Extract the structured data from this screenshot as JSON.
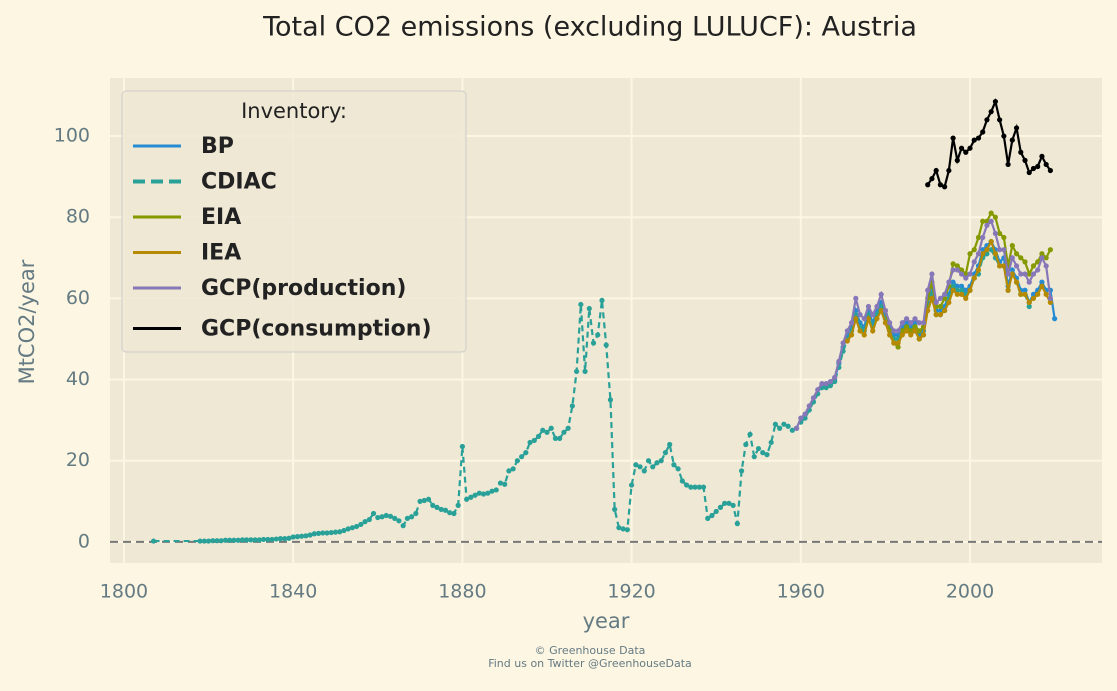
{
  "chart_data": {
    "type": "line",
    "title": "Total CO2 emissions (excluding LULUCF): Austria",
    "x_label": "year",
    "y_label": "MtCO2/year",
    "legend_title": "Inventory:",
    "legend_position": "upper left",
    "footer": [
      "© Greenhouse Data",
      "Find us on Twitter @GreenhouseData"
    ],
    "xlim": [
      1796.7,
      2031.2
    ],
    "ylim": [
      -5.2,
      114.3
    ],
    "xticks": [
      1800,
      1840,
      1880,
      1920,
      1960,
      2000
    ],
    "yticks": [
      0,
      20,
      40,
      60,
      80,
      100
    ],
    "grid": true,
    "hline": 0,
    "series": [
      {
        "name": "BP",
        "color": "#268bd2",
        "linestyle": "solid",
        "x": [
          1965,
          1966,
          1967,
          1968,
          1969,
          1970,
          1971,
          1972,
          1973,
          1974,
          1975,
          1976,
          1977,
          1978,
          1979,
          1980,
          1981,
          1982,
          1983,
          1984,
          1985,
          1986,
          1987,
          1988,
          1989,
          1990,
          1991,
          1992,
          1993,
          1994,
          1995,
          1996,
          1997,
          1998,
          1999,
          2000,
          2001,
          2002,
          2003,
          2004,
          2005,
          2006,
          2007,
          2008,
          2009,
          2010,
          2011,
          2012,
          2013,
          2014,
          2015,
          2016,
          2017,
          2018,
          2019,
          2020
        ],
        "values": [
          38.5,
          38.5,
          39,
          40,
          44,
          48,
          51,
          53,
          57,
          54,
          53,
          57,
          54,
          57,
          59,
          56,
          53,
          51,
          51,
          53,
          54,
          53,
          54,
          51,
          52,
          59,
          62,
          57,
          57,
          58,
          61,
          64,
          63,
          63,
          62,
          63,
          66,
          68,
          72,
          73,
          74,
          72,
          69,
          70,
          63,
          67,
          65,
          62,
          62,
          59,
          61,
          62,
          64,
          62,
          62,
          55
        ]
      },
      {
        "name": "CDIAC",
        "color": "#2aa198",
        "linestyle": "dashed",
        "x": [
          1807,
          1818,
          1819,
          1820,
          1821,
          1822,
          1823,
          1824,
          1825,
          1826,
          1827,
          1828,
          1829,
          1830,
          1831,
          1832,
          1833,
          1834,
          1835,
          1836,
          1837,
          1838,
          1839,
          1840,
          1841,
          1842,
          1843,
          1844,
          1845,
          1846,
          1847,
          1848,
          1849,
          1850,
          1851,
          1852,
          1853,
          1854,
          1855,
          1856,
          1857,
          1858,
          1859,
          1860,
          1861,
          1862,
          1863,
          1864,
          1865,
          1866,
          1867,
          1868,
          1869,
          1870,
          1871,
          1872,
          1873,
          1874,
          1875,
          1876,
          1877,
          1878,
          1879,
          1880,
          1881,
          1882,
          1883,
          1884,
          1885,
          1886,
          1887,
          1888,
          1889,
          1890,
          1891,
          1892,
          1893,
          1894,
          1895,
          1896,
          1897,
          1898,
          1899,
          1900,
          1901,
          1902,
          1903,
          1904,
          1905,
          1906,
          1907,
          1908,
          1909,
          1910,
          1911,
          1912,
          1913,
          1914,
          1915,
          1916,
          1917,
          1918,
          1919,
          1920,
          1921,
          1922,
          1923,
          1924,
          1925,
          1926,
          1927,
          1928,
          1929,
          1930,
          1931,
          1932,
          1933,
          1934,
          1935,
          1936,
          1937,
          1938,
          1939,
          1940,
          1941,
          1942,
          1943,
          1944,
          1945,
          1946,
          1947,
          1948,
          1949,
          1950,
          1951,
          1952,
          1953,
          1954,
          1955,
          1956,
          1957,
          1958,
          1959,
          1960,
          1961,
          1962,
          1963,
          1964,
          1965,
          1966,
          1967,
          1968,
          1969,
          1970,
          1971,
          1972,
          1973,
          1974,
          1975,
          1976,
          1977,
          1978,
          1979,
          1980,
          1981,
          1982,
          1983,
          1984,
          1985,
          1986,
          1987,
          1988,
          1989,
          1990,
          1991,
          1992,
          1993,
          1994,
          1995,
          1996,
          1997,
          1998,
          1999,
          2000,
          2001,
          2002,
          2003,
          2004,
          2005,
          2006,
          2007,
          2008,
          2009,
          2010,
          2011,
          2012,
          2013,
          2014
        ],
        "values": [
          0.2,
          0.2,
          0.2,
          0.2,
          0.3,
          0.3,
          0.3,
          0.4,
          0.4,
          0.4,
          0.4,
          0.5,
          0.5,
          0.5,
          0.5,
          0.5,
          0.6,
          0.6,
          0.6,
          0.7,
          0.8,
          0.8,
          0.9,
          1.2,
          1.3,
          1.4,
          1.5,
          1.7,
          2,
          2.1,
          2.2,
          2.2,
          2.3,
          2.4,
          2.5,
          2.8,
          3.2,
          3.5,
          3.8,
          4.3,
          5,
          5.5,
          7,
          6,
          6.2,
          6.5,
          6.3,
          5.8,
          5.2,
          4,
          5.8,
          6.2,
          7,
          10,
          10.2,
          10.5,
          9,
          8.5,
          8,
          7.8,
          7.2,
          7,
          9,
          23.5,
          10.5,
          11,
          11.5,
          12,
          11.8,
          12,
          12.5,
          12.8,
          14.5,
          14.2,
          17.5,
          18,
          20,
          21,
          22,
          24.5,
          25,
          26,
          27.5,
          27,
          28,
          25.5,
          25.5,
          27,
          28,
          33.5,
          42,
          58.5,
          42,
          57.5,
          49,
          51,
          59.5,
          48.5,
          35,
          8,
          3.5,
          3.2,
          3,
          14,
          19,
          18.5,
          17.5,
          20,
          18.5,
          19.5,
          20,
          22,
          24,
          19,
          18,
          15,
          14,
          13.5,
          13.5,
          13.5,
          13.5,
          5.8,
          6.5,
          7.5,
          8.5,
          9.5,
          9.5,
          9,
          4.5,
          17.5,
          24,
          26.5,
          21,
          23,
          22,
          21.5,
          24.5,
          29,
          28,
          29,
          28.5,
          27.5,
          28,
          29.5,
          30.5,
          32.5,
          34.5,
          36.5,
          38,
          38,
          38.5,
          39.5,
          43,
          47,
          50,
          52,
          56,
          53,
          52,
          56,
          53,
          56,
          58,
          55,
          52,
          50,
          50,
          52,
          53,
          52,
          53,
          50,
          51,
          58,
          61,
          56,
          56,
          57,
          60,
          63,
          62,
          62,
          61,
          62,
          65,
          66,
          70,
          71,
          72,
          70,
          68,
          68,
          62,
          66,
          64,
          61,
          61,
          58
        ]
      },
      {
        "name": "EIA",
        "color": "#859900",
        "linestyle": "solid",
        "x": [
          1980,
          1981,
          1982,
          1983,
          1984,
          1985,
          1986,
          1987,
          1988,
          1989,
          1990,
          1991,
          1992,
          1993,
          1994,
          1995,
          1996,
          1997,
          1998,
          1999,
          2000,
          2001,
          2002,
          2003,
          2004,
          2005,
          2006,
          2007,
          2008,
          2009,
          2010,
          2011,
          2012,
          2013,
          2014,
          2015,
          2016,
          2017,
          2018,
          2019
        ],
        "values": [
          57,
          52,
          49,
          48,
          52,
          53,
          52,
          53,
          52,
          53,
          60,
          64,
          58,
          58,
          60,
          63,
          68.5,
          68,
          67,
          66,
          71,
          72,
          75,
          79,
          79,
          81,
          80,
          76,
          75,
          68,
          73,
          71,
          70,
          69,
          66,
          68,
          69,
          71,
          70,
          72
        ]
      },
      {
        "name": "IEA",
        "color": "#b58900",
        "linestyle": "solid",
        "x": [
          1971,
          1972,
          1973,
          1974,
          1975,
          1976,
          1977,
          1978,
          1979,
          1980,
          1981,
          1982,
          1983,
          1984,
          1985,
          1986,
          1987,
          1988,
          1989,
          1990,
          1991,
          1992,
          1993,
          1994,
          1995,
          1996,
          1997,
          1998,
          1999,
          2000,
          2001,
          2002,
          2003,
          2004,
          2005,
          2006,
          2007,
          2008,
          2009,
          2010,
          2011,
          2012,
          2013,
          2014,
          2015,
          2016,
          2017,
          2018,
          2019
        ],
        "values": [
          49.5,
          51,
          55,
          52,
          51,
          55,
          52,
          55,
          57,
          54,
          51,
          49,
          49,
          51,
          52,
          51,
          52,
          50,
          51,
          57,
          60,
          56,
          56,
          57,
          59,
          62,
          61,
          61,
          60,
          62,
          65,
          67,
          71,
          72,
          74,
          71,
          68,
          68,
          62,
          66,
          64,
          61,
          61,
          59,
          60,
          61,
          63,
          61,
          59
        ]
      },
      {
        "name": "GCP(production)",
        "color": "#8677b8",
        "linestyle": "solid",
        "x": [
          1959,
          1960,
          1961,
          1962,
          1963,
          1964,
          1965,
          1966,
          1967,
          1968,
          1969,
          1970,
          1971,
          1972,
          1973,
          1974,
          1975,
          1976,
          1977,
          1978,
          1979,
          1980,
          1981,
          1982,
          1983,
          1984,
          1985,
          1986,
          1987,
          1988,
          1989,
          1990,
          1991,
          1992,
          1993,
          1994,
          1995,
          1996,
          1997,
          1998,
          1999,
          2000,
          2001,
          2002,
          2003,
          2004,
          2005,
          2006,
          2007,
          2008,
          2009,
          2010,
          2011,
          2012,
          2013,
          2014,
          2015,
          2016,
          2017,
          2018,
          2019
        ],
        "values": [
          28,
          30.5,
          31.5,
          33.5,
          35.5,
          37.5,
          39,
          39,
          39.5,
          40.5,
          44.5,
          49,
          52,
          54,
          60,
          56,
          55,
          58,
          56,
          58,
          61,
          57,
          54,
          52,
          52,
          54,
          55,
          54,
          55,
          54,
          54,
          62,
          66,
          59,
          60,
          61,
          64,
          67,
          67,
          66,
          65,
          66,
          69,
          71,
          75,
          78,
          79,
          76,
          72,
          72,
          66,
          70,
          68,
          66,
          66,
          64,
          66,
          67,
          70,
          68,
          60
        ]
      },
      {
        "name": "GCP(consumption)",
        "color": "#000000",
        "linestyle": "solid",
        "x": [
          1990,
          1991,
          1992,
          1993,
          1994,
          1995,
          1996,
          1997,
          1998,
          1999,
          2000,
          2001,
          2002,
          2003,
          2004,
          2005,
          2006,
          2007,
          2008,
          2009,
          2010,
          2011,
          2012,
          2013,
          2014,
          2015,
          2016,
          2017,
          2018,
          2019
        ],
        "values": [
          88,
          89.5,
          91.5,
          88,
          87.5,
          91.5,
          99.5,
          94,
          97,
          96,
          97,
          99,
          99.5,
          101,
          104,
          106,
          108.5,
          104,
          100,
          93,
          99,
          102,
          96,
          94,
          91,
          92,
          92.5,
          95,
          93,
          91.5
        ]
      }
    ]
  }
}
